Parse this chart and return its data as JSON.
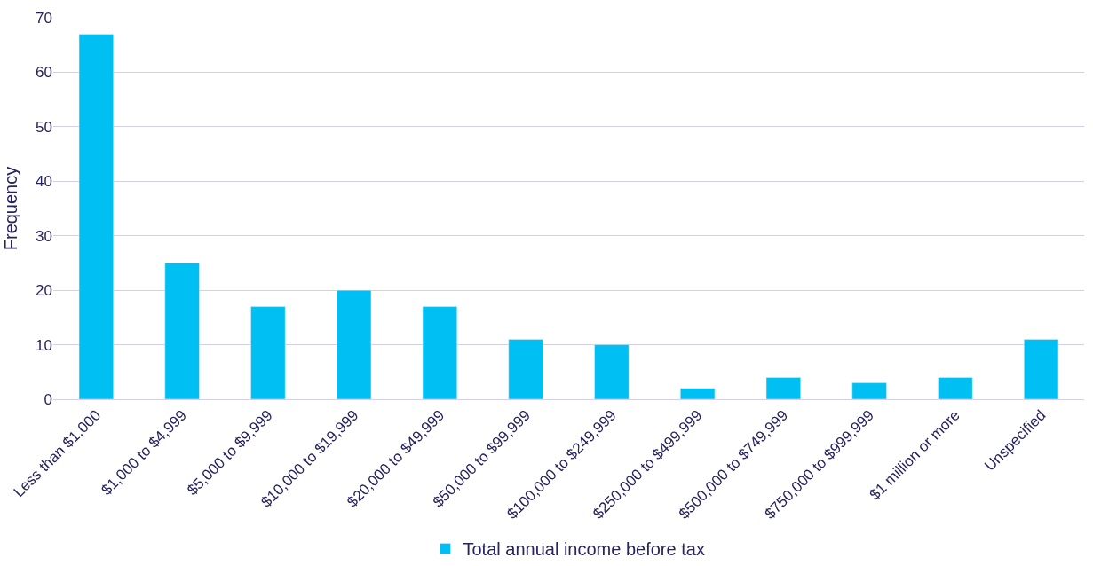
{
  "chart_data": {
    "type": "bar",
    "ylabel": "Frequency",
    "categories": [
      "Less than $1,000",
      "$1,000 to $4,999",
      "$5,000 to $9,999",
      "$10,000 to $19,999",
      "$20,000 to $49,999",
      "$50,000 to $99,999",
      "$100,000 to $249,999",
      "$250,000 to $499,999",
      "$500,000 to $749,999",
      "$750,000 to $999,999",
      "$1 million or more",
      "Unspecified"
    ],
    "series": [
      {
        "name": "Total annual income before tax",
        "color": "#00c0f3",
        "values": [
          67,
          25,
          17,
          20,
          17,
          11,
          10,
          2,
          4,
          3,
          4,
          11
        ]
      }
    ],
    "ylim": [
      0,
      70
    ],
    "yticks": [
      0,
      10,
      20,
      30,
      40,
      50,
      60,
      70
    ],
    "grid": "y",
    "legend": "bottom"
  }
}
